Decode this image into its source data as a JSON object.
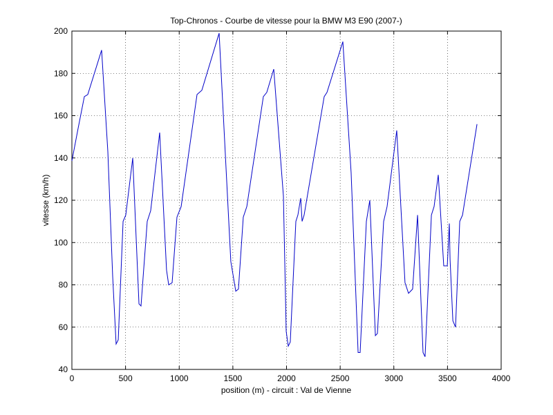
{
  "chart_data": {
    "type": "line",
    "title": "Top-Chronos - Courbe de vitesse pour la BMW M3 E90 (2007-)",
    "x_label": "position (m) - circuit : Val de Vienne",
    "y_label": "vitesse (km/h)",
    "x": [
      0,
      58,
      116,
      148,
      277,
      335,
      380,
      412,
      432,
      477,
      502,
      567,
      625,
      644,
      702,
      734,
      818,
      882,
      902,
      934,
      979,
      1018,
      1166,
      1211,
      1372,
      1481,
      1527,
      1552,
      1597,
      1630,
      1784,
      1816,
      1881,
      1971,
      1997,
      2016,
      2035,
      2087,
      2106,
      2132,
      2145,
      2164,
      2351,
      2377,
      2525,
      2602,
      2667,
      2686,
      2744,
      2776,
      2828,
      2847,
      2905,
      2937,
      3027,
      3104,
      3137,
      3175,
      3221,
      3272,
      3291,
      3350,
      3375,
      3414,
      3465,
      3498,
      3517,
      3524,
      3550,
      3575,
      3614,
      3640,
      3775
    ],
    "values": [
      138.6,
      154,
      169,
      170,
      191,
      143,
      84,
      52,
      54,
      110,
      113,
      140,
      71,
      70,
      110,
      115,
      152,
      87,
      80,
      81,
      112,
      117,
      170,
      172,
      199,
      91,
      77,
      78,
      112,
      117,
      169,
      171,
      182,
      122,
      58,
      51,
      53,
      110,
      113,
      121,
      110,
      113,
      169,
      171,
      195,
      133,
      48,
      48,
      110,
      120,
      56,
      57,
      110,
      117,
      153,
      81,
      76,
      78,
      113,
      48,
      46,
      113,
      117,
      132,
      89,
      89,
      109,
      92,
      63,
      60,
      110,
      113,
      156
    ],
    "color": "#0000c8",
    "xlim": [
      0,
      4000
    ],
    "xticks": [
      0,
      500,
      1000,
      1500,
      2000,
      2500,
      3000,
      3500,
      4000
    ],
    "ylim": [
      40,
      200
    ],
    "yticks": [
      40,
      60,
      80,
      100,
      120,
      140,
      160,
      180,
      200
    ],
    "grid": true
  }
}
